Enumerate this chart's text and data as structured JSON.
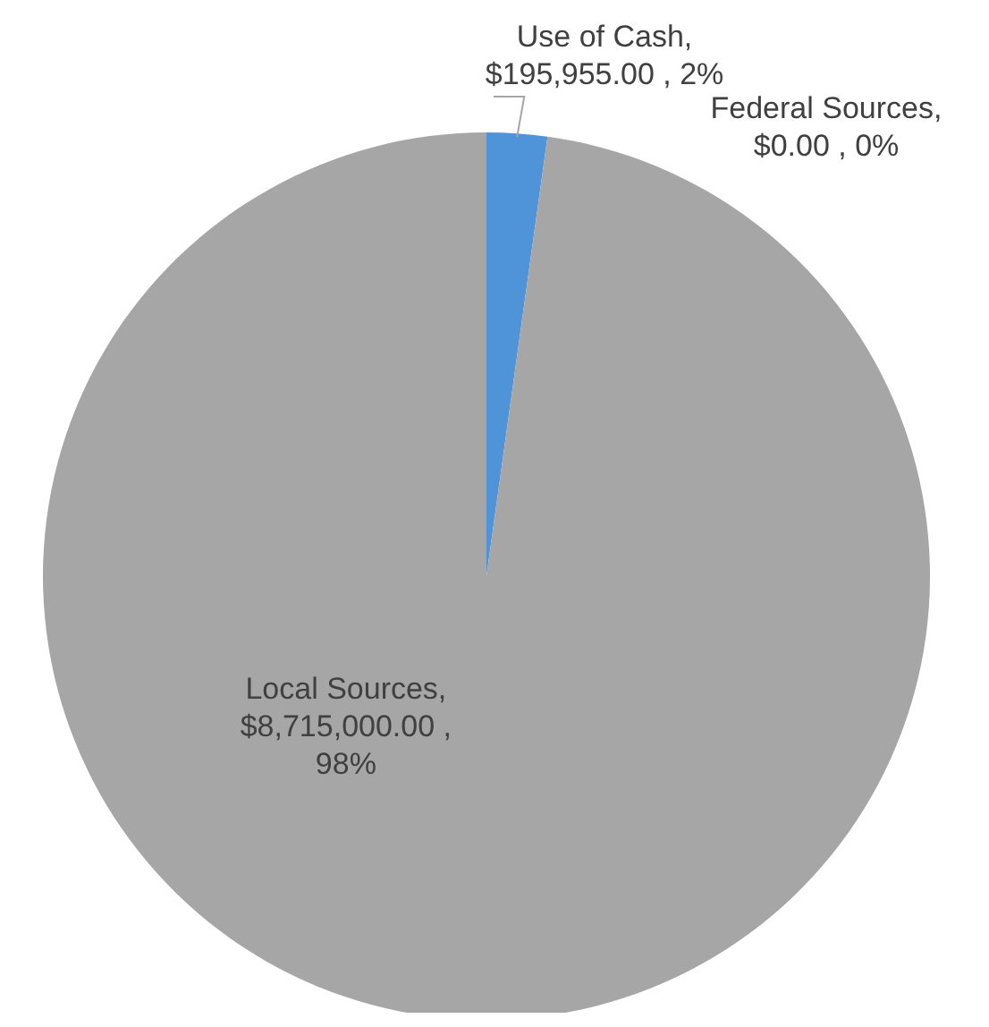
{
  "chart_data": {
    "type": "pie",
    "categories": [
      "Use of Cash",
      "Federal Sources",
      "Local Sources"
    ],
    "values": [
      195955,
      0,
      8715000
    ],
    "colors": [
      "#4f93d8",
      "#ed7d31",
      "#a6a6a6"
    ],
    "value_labels": [
      ", $195,955.00 , 2%",
      ", $0.00 , 0%",
      ", $8,715,000.00 , 98%"
    ]
  }
}
